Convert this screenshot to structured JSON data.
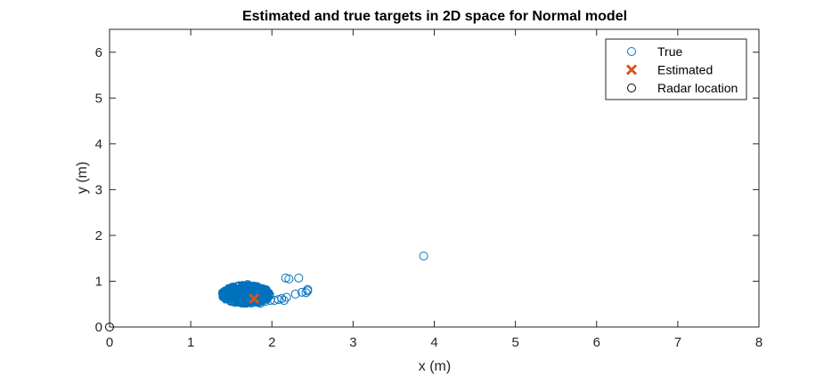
{
  "chart_data": {
    "type": "scatter",
    "title": "Estimated and true targets in 2D space for Normal model",
    "xlabel": "x (m)",
    "ylabel": "y (m)",
    "xlim": [
      0,
      8
    ],
    "ylim": [
      0,
      6.5
    ],
    "xticks": [
      0,
      1,
      2,
      3,
      4,
      5,
      6,
      7,
      8
    ],
    "yticks": [
      0,
      1,
      2,
      3,
      4,
      5,
      6
    ],
    "grid": false,
    "legend_position": "top-right",
    "series": [
      {
        "name": "True",
        "marker": "circle-open",
        "color": "#0072BD",
        "cluster": {
          "x_range": [
            1.38,
            1.98
          ],
          "y_range": [
            0.5,
            0.92
          ]
        },
        "points": [
          [
            1.7,
            0.93
          ],
          [
            1.86,
            0.52
          ],
          [
            1.92,
            0.56
          ],
          [
            1.98,
            0.58
          ],
          [
            2.03,
            0.58
          ],
          [
            2.08,
            0.6
          ],
          [
            2.12,
            0.62
          ],
          [
            2.15,
            0.58
          ],
          [
            2.18,
            0.65
          ],
          [
            2.17,
            1.07
          ],
          [
            2.21,
            1.05
          ],
          [
            2.33,
            1.07
          ],
          [
            2.29,
            0.72
          ],
          [
            2.37,
            0.76
          ],
          [
            2.42,
            0.75
          ],
          [
            2.44,
            0.79
          ],
          [
            2.44,
            0.82
          ],
          [
            3.87,
            1.55
          ]
        ]
      },
      {
        "name": "Estimated",
        "marker": "x",
        "color": "#D95319",
        "points": [
          [
            1.78,
            0.62
          ]
        ]
      },
      {
        "name": "Radar location",
        "marker": "circle-open",
        "color": "#000000",
        "points": [
          [
            0,
            0
          ]
        ]
      }
    ]
  }
}
